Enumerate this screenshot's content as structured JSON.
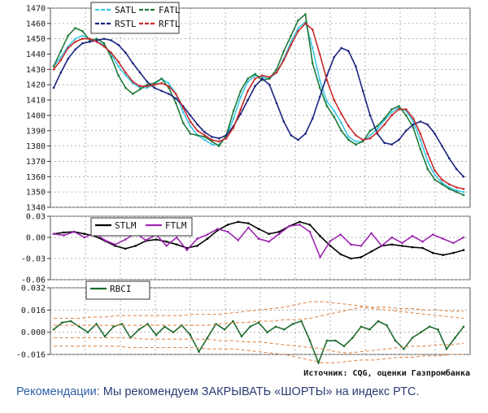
{
  "chart_data": [
    {
      "type": "line",
      "panel": "price",
      "ylim": [
        1340,
        1470
      ],
      "yticks": [
        "1340",
        "1350",
        "1360",
        "1370",
        "1380",
        "1390",
        "1400",
        "1410",
        "1420",
        "1430",
        "1440",
        "1450",
        "1460",
        "1470"
      ],
      "legend_placement": "top-left",
      "legend_labels": [
        "SATL",
        "FATL",
        "RSTL",
        "RFTL"
      ],
      "series": [
        {
          "name": "SATL",
          "color": "#3cc8e6",
          "values": [
            1432,
            1438,
            1445,
            1450,
            1452,
            1450,
            1448,
            1446,
            1440,
            1432,
            1426,
            1421,
            1418,
            1418,
            1420,
            1424,
            1421,
            1414,
            1402,
            1393,
            1387,
            1384,
            1381,
            1381,
            1386,
            1398,
            1412,
            1422,
            1426,
            1425,
            1424,
            1428,
            1437,
            1448,
            1457,
            1461,
            1444,
            1423,
            1409,
            1403,
            1395,
            1386,
            1383,
            1383,
            1387,
            1391,
            1397,
            1402,
            1405,
            1403,
            1396,
            1384,
            1370,
            1361,
            1356,
            1353,
            1351,
            1350
          ]
        },
        {
          "name": "FATL",
          "color": "#1f7a3c",
          "values": [
            1432,
            1442,
            1452,
            1457,
            1455,
            1449,
            1450,
            1447,
            1438,
            1426,
            1418,
            1414,
            1417,
            1420,
            1421,
            1424,
            1418,
            1408,
            1395,
            1388,
            1387,
            1386,
            1383,
            1380,
            1387,
            1403,
            1416,
            1424,
            1427,
            1423,
            1424,
            1430,
            1442,
            1452,
            1462,
            1466,
            1434,
            1418,
            1406,
            1399,
            1390,
            1384,
            1381,
            1383,
            1390,
            1393,
            1398,
            1404,
            1406,
            1400,
            1392,
            1378,
            1365,
            1358,
            1355,
            1352,
            1350,
            1348
          ]
        },
        {
          "name": "RSTL",
          "color": "#1a237e",
          "values": [
            1418,
            1428,
            1437,
            1443,
            1447,
            1448,
            1449,
            1450,
            1449,
            1446,
            1441,
            1434,
            1428,
            1422,
            1418,
            1416,
            1414,
            1411,
            1406,
            1400,
            1394,
            1389,
            1386,
            1385,
            1387,
            1393,
            1401,
            1410,
            1419,
            1424,
            1420,
            1408,
            1396,
            1387,
            1384,
            1388,
            1398,
            1412,
            1426,
            1438,
            1444,
            1442,
            1432,
            1416,
            1400,
            1388,
            1382,
            1381,
            1384,
            1390,
            1394,
            1396,
            1394,
            1388,
            1380,
            1372,
            1365,
            1360
          ]
        },
        {
          "name": "RFTL",
          "color": "#c62828",
          "values": [
            1430,
            1436,
            1444,
            1448,
            1450,
            1450,
            1448,
            1445,
            1441,
            1435,
            1428,
            1422,
            1419,
            1419,
            1420,
            1421,
            1419,
            1414,
            1405,
            1396,
            1390,
            1387,
            1384,
            1383,
            1385,
            1392,
            1404,
            1416,
            1424,
            1426,
            1425,
            1428,
            1436,
            1446,
            1455,
            1460,
            1456,
            1440,
            1423,
            1410,
            1401,
            1393,
            1387,
            1384,
            1385,
            1389,
            1394,
            1400,
            1404,
            1404,
            1398,
            1388,
            1375,
            1364,
            1358,
            1355,
            1353,
            1352
          ]
        }
      ]
    },
    {
      "type": "line",
      "panel": "STLM/FTLM",
      "ylim": [
        -0.06,
        0.03
      ],
      "yticks": [
        "0.03",
        "0.00",
        "-0.03",
        "-0.06"
      ],
      "legend_placement": "top-left",
      "legend_labels": [
        "STLM",
        "FTLM"
      ],
      "series": [
        {
          "name": "STLM",
          "color": "#000000",
          "values": [
            0.005,
            0.007,
            0.008,
            0.005,
            0.002,
            -0.005,
            -0.012,
            -0.016,
            -0.012,
            -0.005,
            -0.003,
            -0.006,
            -0.01,
            -0.015,
            -0.012,
            -0.002,
            0.01,
            0.018,
            0.022,
            0.02,
            0.012,
            0.005,
            0.008,
            0.016,
            0.022,
            0.018,
            0.002,
            -0.012,
            -0.024,
            -0.03,
            -0.028,
            -0.02,
            -0.012,
            -0.01,
            -0.012,
            -0.014,
            -0.015,
            -0.022,
            -0.025,
            -0.022,
            -0.018
          ]
        },
        {
          "name": "FTLM",
          "color": "#9c27b0",
          "values": [
            0.005,
            0.003,
            0.008,
            0.0,
            0.006,
            -0.004,
            -0.01,
            -0.003,
            0.006,
            -0.004,
            0.004,
            -0.012,
            0.0,
            -0.018,
            -0.002,
            0.004,
            0.012,
            0.008,
            -0.004,
            0.014,
            -0.002,
            -0.006,
            0.005,
            0.016,
            0.018,
            0.008,
            -0.028,
            -0.005,
            0.004,
            -0.01,
            -0.012,
            0.006,
            -0.012,
            0.0,
            -0.008,
            0.002,
            -0.006,
            0.004,
            -0.002,
            -0.008,
            0.0
          ]
        }
      ]
    },
    {
      "type": "line",
      "panel": "RBCI",
      "ylim": [
        -0.016,
        0.032
      ],
      "yticks": [
        "0.032",
        "0.016",
        "0.000",
        "-0.016"
      ],
      "legend_placement": "top-left",
      "legend_labels": [
        "RBCI"
      ],
      "series": [
        {
          "name": "RBCI",
          "color": "#1e6b2e",
          "values": [
            0.002,
            0.007,
            0.008,
            0.004,
            0.0,
            0.006,
            -0.003,
            0.004,
            0.006,
            -0.004,
            0.002,
            0.006,
            -0.002,
            0.004,
            0.0,
            0.005,
            -0.002,
            -0.014,
            -0.004,
            0.006,
            0.002,
            0.008,
            -0.003,
            0.004,
            0.007,
            0.0,
            0.004,
            0.002,
            0.006,
            0.008,
            -0.006,
            -0.022,
            -0.006,
            -0.006,
            -0.01,
            -0.004,
            0.004,
            0.002,
            0.008,
            0.005,
            -0.006,
            -0.012,
            -0.004,
            0.0,
            0.004,
            0.002,
            -0.012,
            -0.004,
            0.004
          ]
        },
        {
          "name": "",
          "color": "#e0884a",
          "dashed": true,
          "values": [
            0.005,
            0.005,
            0.005,
            0.005,
            0.005,
            0.005,
            0.005,
            0.005,
            0.005,
            0.005,
            0.005,
            0.005,
            0.005,
            0.006,
            0.007,
            0.007,
            0.008,
            0.008,
            0.009,
            0.009,
            0.01,
            0.012,
            0.014,
            0.016,
            0.018,
            0.017,
            0.016,
            0.015,
            0.014,
            0.013,
            0.012,
            0.011,
            0.01
          ]
        },
        {
          "name": "",
          "color": "#e0884a",
          "dashed": true,
          "values": [
            0.01,
            0.01,
            0.01,
            0.011,
            0.011,
            0.012,
            0.012,
            0.012,
            0.012,
            0.012,
            0.012,
            0.013,
            0.013,
            0.013,
            0.014,
            0.015,
            0.016,
            0.017,
            0.018,
            0.02,
            0.022,
            0.022,
            0.021,
            0.02,
            0.019,
            0.018,
            0.018,
            0.017,
            0.017,
            0.016,
            0.016,
            0.015,
            0.015
          ]
        },
        {
          "name": "",
          "color": "#e0884a",
          "dashed": true,
          "values": [
            -0.004,
            -0.004,
            -0.004,
            -0.004,
            -0.004,
            -0.004,
            -0.004,
            -0.005,
            -0.005,
            -0.005,
            -0.005,
            -0.005,
            -0.005,
            -0.006,
            -0.006,
            -0.007,
            -0.007,
            -0.008,
            -0.009,
            -0.01,
            -0.011,
            -0.012,
            -0.014,
            -0.015,
            -0.014,
            -0.013,
            -0.012,
            -0.011,
            -0.01,
            -0.01,
            -0.009,
            -0.009,
            -0.008
          ]
        },
        {
          "name": "",
          "color": "#e0884a",
          "dashed": true,
          "values": [
            -0.01,
            -0.01,
            -0.01,
            -0.01,
            -0.01,
            -0.01,
            -0.011,
            -0.011,
            -0.011,
            -0.011,
            -0.011,
            -0.011,
            -0.012,
            -0.012,
            -0.012,
            -0.013,
            -0.014,
            -0.015,
            -0.016,
            -0.018,
            -0.02,
            -0.022,
            -0.022,
            -0.021,
            -0.02,
            -0.02,
            -0.019,
            -0.018,
            -0.018,
            -0.017,
            -0.017,
            -0.016,
            -0.016
          ]
        }
      ]
    }
  ],
  "source_text": "Источник: CQG, оценки Газпромбанка",
  "recommendation": {
    "lead": "Рекомендации:",
    "text": " Мы рекомендуем ЗАКРЫВАТЬ «ШОРТЫ» на индекс РТС."
  }
}
